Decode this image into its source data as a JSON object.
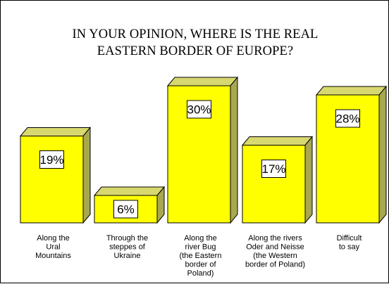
{
  "chart_data": {
    "type": "bar",
    "title_lines": [
      "IN YOUR OPINION, WHERE IS THE REAL",
      "EASTERN BORDER OF EUROPE?"
    ],
    "categories": [
      [
        "Along the",
        "Ural",
        "Mountains"
      ],
      [
        "Through the",
        "steppes of",
        "Ukraine"
      ],
      [
        "Along the",
        "river Bug",
        "(the Eastern",
        "border of",
        "Poland)"
      ],
      [
        "Along the rivers",
        "Oder and Neisse",
        "(the Western",
        "border of Poland)"
      ],
      [
        "Difficult",
        "to say"
      ]
    ],
    "values": [
      19,
      6,
      30,
      17,
      28
    ],
    "value_labels": [
      "19%",
      "6%",
      "30%",
      "17%",
      "28%"
    ],
    "ylim": [
      0,
      30
    ],
    "grid": false,
    "legend": "none",
    "colors": {
      "bar_front": "#ffff00",
      "bar_top": "#d8d870",
      "bar_side": "#a8a850",
      "outline": "#000000",
      "label_box": "#ffffff"
    }
  }
}
